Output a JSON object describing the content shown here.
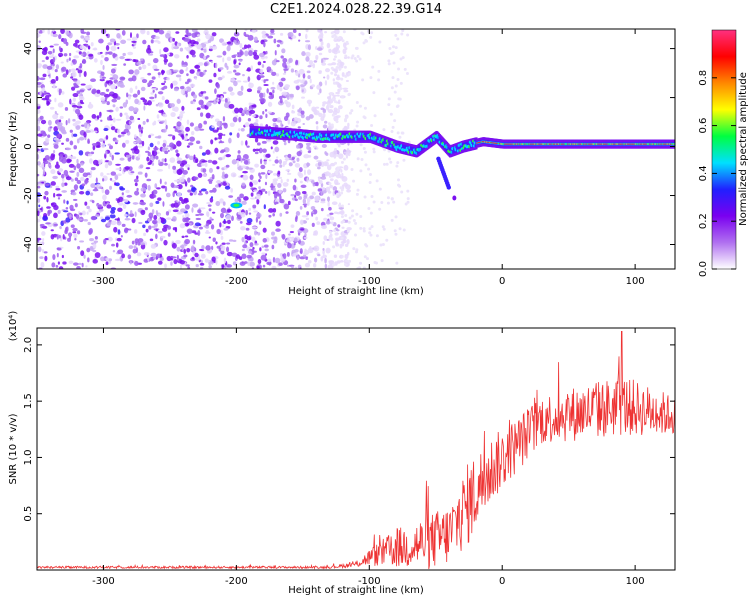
{
  "title": "C2E1.2024.028.22.39.G14",
  "chart_data": [
    {
      "type": "heatmap",
      "xlabel": "Height of straight line (km)",
      "ylabel": "Frequency (Hz)",
      "xlim": [
        -350,
        130
      ],
      "ylim": [
        -50,
        48
      ],
      "x_ticks": [
        -300,
        -200,
        -100,
        0,
        100
      ],
      "y_ticks": [
        -40,
        -20,
        0,
        20,
        40
      ],
      "colorbar": {
        "label": "Normalized spectral amplitude",
        "range": [
          0,
          1
        ],
        "ticks": [
          "0.0",
          "0.2",
          "0.4",
          "0.6",
          "0.8"
        ],
        "tick_values": [
          0.0,
          0.2,
          0.4,
          0.6,
          0.8
        ],
        "colormap": [
          "#ffffff",
          "#b070f0",
          "#7a00f0",
          "#2020ff",
          "#00e0ff",
          "#00ff40",
          "#ffff00",
          "#ff8800",
          "#ff0000",
          "#ff3080"
        ]
      },
      "features": {
        "noise_region_x": [
          -350,
          -125
        ],
        "noise_freq_range": [
          -50,
          48
        ],
        "ridge": [
          {
            "x": -190,
            "y": 6
          },
          {
            "x": -160,
            "y": 5
          },
          {
            "x": -140,
            "y": 4
          },
          {
            "x": -120,
            "y": 4
          },
          {
            "x": -100,
            "y": 4
          },
          {
            "x": -80,
            "y": 0
          },
          {
            "x": -65,
            "y": -2
          },
          {
            "x": -50,
            "y": 4
          },
          {
            "x": -40,
            "y": -2
          },
          {
            "x": -30,
            "y": 0
          },
          {
            "x": -15,
            "y": 2
          },
          {
            "x": 0,
            "y": 1
          },
          {
            "x": 50,
            "y": 1
          },
          {
            "x": 130,
            "y": 1
          }
        ],
        "blob_low": {
          "x": -200,
          "y": -24
        }
      }
    },
    {
      "type": "line",
      "xlabel": "Height of straight line (km)",
      "ylabel": "SNR (10 * v/v)",
      "y_multiplier": "(x10⁴)",
      "xlim": [
        -350,
        130
      ],
      "ylim": [
        0,
        2.15
      ],
      "x_ticks": [
        -300,
        -200,
        -100,
        0,
        100
      ],
      "y_ticks": [
        0.5,
        1.0,
        1.5,
        2.0
      ],
      "color": "#ee3333",
      "envelope": [
        {
          "x": -350,
          "base": 0.02,
          "amp": 0.02
        },
        {
          "x": -130,
          "base": 0.02,
          "amp": 0.02
        },
        {
          "x": -110,
          "base": 0.04,
          "amp": 0.05
        },
        {
          "x": -100,
          "base": 0.08,
          "amp": 0.15
        },
        {
          "x": -80,
          "base": 0.12,
          "amp": 0.35
        },
        {
          "x": -55,
          "base": 0.15,
          "amp": 0.5
        },
        {
          "x": -40,
          "base": 0.2,
          "amp": 0.55
        },
        {
          "x": -25,
          "base": 0.45,
          "amp": 0.75
        },
        {
          "x": -10,
          "base": 0.75,
          "amp": 0.6
        },
        {
          "x": 10,
          "base": 1.0,
          "amp": 0.5
        },
        {
          "x": 30,
          "base": 1.25,
          "amp": 0.45
        },
        {
          "x": 60,
          "base": 1.3,
          "amp": 0.5
        },
        {
          "x": 90,
          "base": 1.35,
          "amp": 0.55
        },
        {
          "x": 130,
          "base": 1.3,
          "amp": 0.35
        }
      ],
      "peak": {
        "x": 90,
        "y": 2.12
      }
    }
  ]
}
